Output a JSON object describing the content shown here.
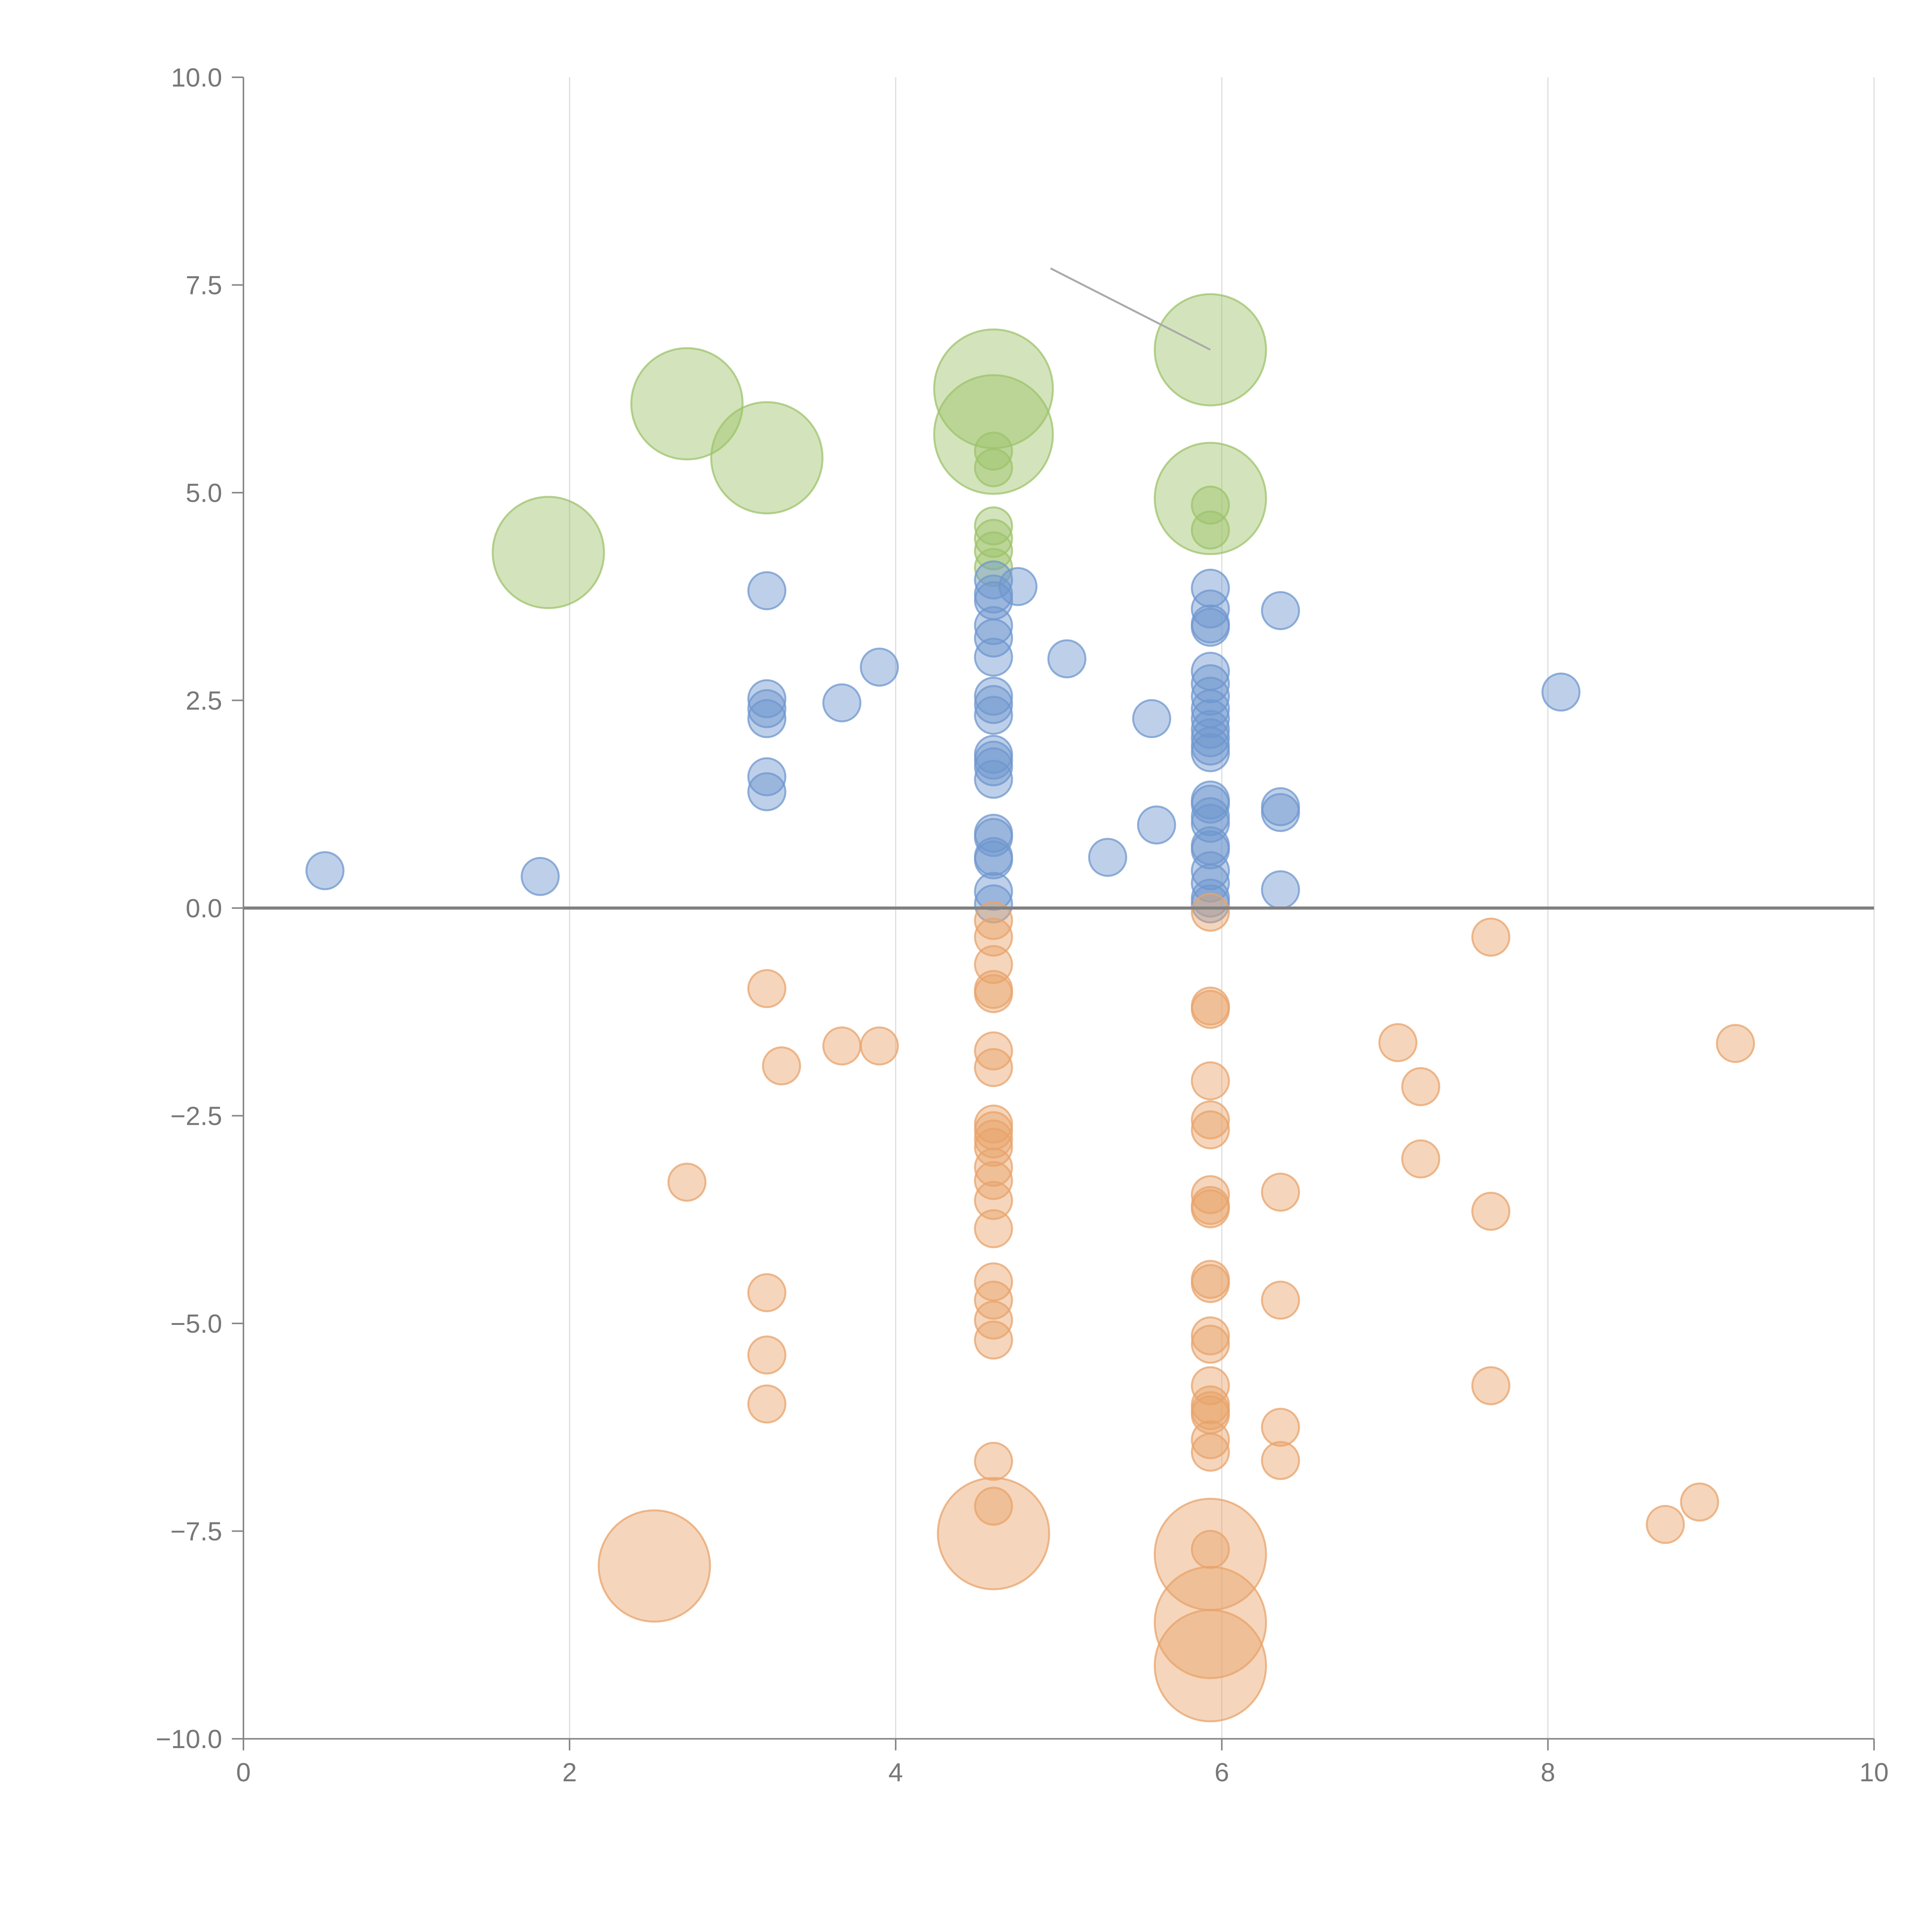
{
  "chart_data": {
    "type": "scatter",
    "title": "",
    "xlabel": "",
    "ylabel": "",
    "xlim": [
      0,
      10
    ],
    "ylim": [
      -10,
      10
    ],
    "grid": "vertical",
    "x_ticks": [
      0,
      2,
      4,
      6,
      8,
      10
    ],
    "x_tick_labels": [
      "0",
      "2",
      "4",
      "6",
      "8",
      "10"
    ],
    "y_ticks": [
      10,
      7.5,
      5,
      2.5,
      0,
      -2.5,
      -5,
      -7.5,
      -10
    ],
    "y_tick_labels": [
      "10.0",
      "7.5",
      "5.0",
      "2.5",
      "0.0",
      "−2.5",
      "−5.0",
      "−7.5",
      "−10.0"
    ],
    "zero_line": 0,
    "series": [
      {
        "name": "green",
        "color": "#9dc36b",
        "points": [
          [
            1.87,
            4.28,
            3
          ],
          [
            2.72,
            6.07,
            3
          ],
          [
            3.21,
            5.42,
            3
          ],
          [
            4.6,
            6.25,
            3.2
          ],
          [
            4.6,
            5.7,
            3.2
          ],
          [
            4.6,
            5.5,
            1
          ],
          [
            4.6,
            5.3,
            1
          ],
          [
            4.6,
            4.6,
            1
          ],
          [
            4.6,
            4.45,
            1
          ],
          [
            4.6,
            4.3,
            1
          ],
          [
            4.6,
            4.1,
            1
          ],
          [
            5.93,
            6.72,
            3
          ],
          [
            5.93,
            4.93,
            3
          ],
          [
            5.93,
            4.85,
            1
          ],
          [
            5.93,
            4.55,
            1
          ]
        ]
      },
      {
        "name": "blue",
        "color": "#6f97cf",
        "points": [
          [
            0.5,
            0.45,
            1
          ],
          [
            1.82,
            0.38,
            1
          ],
          [
            3.21,
            3.82,
            1
          ],
          [
            3.21,
            2.52,
            1
          ],
          [
            3.21,
            2.4,
            1
          ],
          [
            3.21,
            2.28,
            1
          ],
          [
            3.21,
            1.58,
            1
          ],
          [
            3.21,
            1.4,
            1
          ],
          [
            3.67,
            2.47,
            1
          ],
          [
            3.9,
            2.9,
            1
          ],
          [
            4.6,
            3.95,
            1
          ],
          [
            4.6,
            3.78,
            1
          ],
          [
            4.6,
            3.7,
            1
          ],
          [
            4.6,
            3.4,
            1
          ],
          [
            4.6,
            3.25,
            1
          ],
          [
            4.6,
            3.02,
            1
          ],
          [
            4.6,
            2.55,
            1
          ],
          [
            4.6,
            2.45,
            1
          ],
          [
            4.6,
            2.32,
            1
          ],
          [
            4.6,
            1.85,
            1
          ],
          [
            4.6,
            1.78,
            1
          ],
          [
            4.6,
            1.7,
            1
          ],
          [
            4.6,
            1.55,
            1
          ],
          [
            4.6,
            0.9,
            1
          ],
          [
            4.6,
            0.85,
            1
          ],
          [
            4.6,
            0.62,
            1
          ],
          [
            4.6,
            0.58,
            1
          ],
          [
            4.6,
            0.2,
            1
          ],
          [
            4.6,
            0.05,
            1
          ],
          [
            4.75,
            3.87,
            1
          ],
          [
            5.05,
            3.0,
            1
          ],
          [
            5.3,
            0.61,
            1
          ],
          [
            5.57,
            2.28,
            1
          ],
          [
            5.6,
            1.0,
            1
          ],
          [
            5.93,
            3.85,
            1
          ],
          [
            5.93,
            3.6,
            1
          ],
          [
            5.93,
            3.42,
            1
          ],
          [
            5.93,
            3.38,
            1
          ],
          [
            5.93,
            2.85,
            1
          ],
          [
            5.93,
            2.7,
            1
          ],
          [
            5.93,
            2.55,
            1
          ],
          [
            5.93,
            2.4,
            1
          ],
          [
            5.93,
            2.28,
            1
          ],
          [
            5.93,
            2.15,
            1
          ],
          [
            5.93,
            2.05,
            1
          ],
          [
            5.93,
            1.95,
            1
          ],
          [
            5.93,
            1.87,
            1
          ],
          [
            5.93,
            1.3,
            1
          ],
          [
            5.93,
            1.25,
            1
          ],
          [
            5.93,
            1.1,
            1
          ],
          [
            5.93,
            1.02,
            1
          ],
          [
            5.93,
            0.75,
            1
          ],
          [
            5.93,
            0.7,
            1
          ],
          [
            5.93,
            0.45,
            1
          ],
          [
            5.93,
            0.3,
            1
          ],
          [
            5.93,
            0.12,
            1
          ],
          [
            5.93,
            0.05,
            1
          ],
          [
            6.36,
            3.58,
            1
          ],
          [
            6.36,
            1.22,
            1
          ],
          [
            6.36,
            1.15,
            1
          ],
          [
            6.36,
            0.22,
            1
          ],
          [
            8.08,
            2.6,
            1
          ]
        ]
      },
      {
        "name": "orange",
        "color": "#e8a36b",
        "points": [
          [
            2.52,
            -7.92,
            3
          ],
          [
            2.72,
            -3.3,
            1
          ],
          [
            3.21,
            -0.97,
            1
          ],
          [
            3.3,
            -1.9,
            1
          ],
          [
            3.21,
            -4.63,
            1
          ],
          [
            3.21,
            -5.38,
            1
          ],
          [
            3.21,
            -5.97,
            1
          ],
          [
            3.67,
            -1.66,
            1
          ],
          [
            3.9,
            -1.66,
            1
          ],
          [
            4.6,
            -0.15,
            1
          ],
          [
            4.6,
            -0.35,
            1
          ],
          [
            4.6,
            -0.68,
            1
          ],
          [
            4.6,
            -0.98,
            1
          ],
          [
            4.6,
            -1.03,
            1
          ],
          [
            4.6,
            -1.72,
            1
          ],
          [
            4.6,
            -1.92,
            1
          ],
          [
            4.6,
            -2.6,
            1
          ],
          [
            4.6,
            -2.68,
            1
          ],
          [
            4.6,
            -2.78,
            1
          ],
          [
            4.6,
            -2.88,
            1
          ],
          [
            4.6,
            -3.12,
            1
          ],
          [
            4.6,
            -3.28,
            1
          ],
          [
            4.6,
            -3.52,
            1
          ],
          [
            4.6,
            -3.86,
            1
          ],
          [
            4.6,
            -4.5,
            1
          ],
          [
            4.6,
            -4.72,
            1
          ],
          [
            4.6,
            -4.96,
            1
          ],
          [
            4.6,
            -5.2,
            1
          ],
          [
            4.6,
            -6.66,
            1
          ],
          [
            4.6,
            -7.2,
            1
          ],
          [
            4.6,
            -7.53,
            3
          ],
          [
            5.93,
            -0.05,
            1
          ],
          [
            5.93,
            -1.18,
            1
          ],
          [
            5.93,
            -1.22,
            1
          ],
          [
            5.93,
            -2.08,
            1
          ],
          [
            5.93,
            -2.55,
            1
          ],
          [
            5.93,
            -2.67,
            1
          ],
          [
            5.93,
            -3.45,
            1
          ],
          [
            5.93,
            -3.58,
            1
          ],
          [
            5.93,
            -3.62,
            1
          ],
          [
            5.93,
            -4.47,
            1
          ],
          [
            5.93,
            -4.52,
            1
          ],
          [
            5.93,
            -5.15,
            1
          ],
          [
            5.93,
            -5.25,
            1
          ],
          [
            5.93,
            -5.75,
            1
          ],
          [
            5.93,
            -5.98,
            1
          ],
          [
            5.93,
            -6.05,
            1
          ],
          [
            5.93,
            -6.1,
            1
          ],
          [
            5.93,
            -6.4,
            1
          ],
          [
            5.93,
            -6.55,
            1
          ],
          [
            5.93,
            -7.72,
            1
          ],
          [
            5.93,
            -7.78,
            3
          ],
          [
            5.93,
            -8.6,
            3
          ],
          [
            5.93,
            -9.12,
            3
          ],
          [
            6.36,
            -3.42,
            1
          ],
          [
            6.36,
            -4.72,
            1
          ],
          [
            6.36,
            -6.25,
            1
          ],
          [
            6.36,
            -6.65,
            1
          ],
          [
            7.08,
            -1.62,
            1
          ],
          [
            7.22,
            -2.15,
            1
          ],
          [
            7.22,
            -3.02,
            1
          ],
          [
            7.65,
            -0.35,
            1
          ],
          [
            7.65,
            -3.65,
            1
          ],
          [
            7.65,
            -5.75,
            1
          ],
          [
            8.72,
            -7.42,
            1
          ],
          [
            8.93,
            -7.15,
            1
          ],
          [
            9.15,
            -1.63,
            1
          ]
        ]
      }
    ],
    "callout": {
      "from": [
        4.95,
        7.7
      ],
      "to": [
        5.93,
        6.72
      ]
    }
  }
}
